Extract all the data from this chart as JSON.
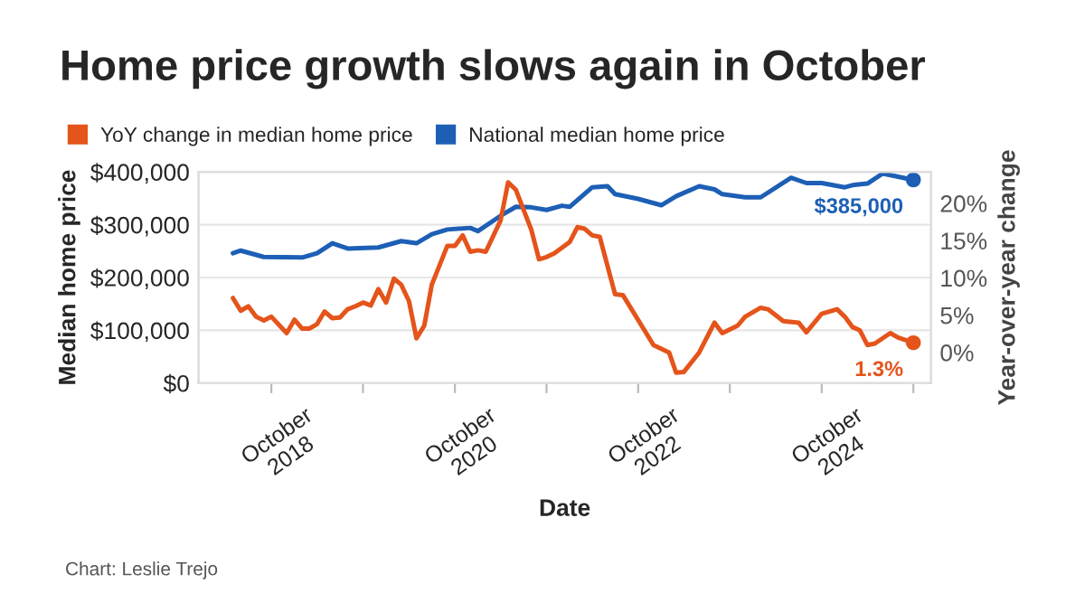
{
  "chart_data": {
    "type": "line",
    "title": "Home price growth slows again in October",
    "xlabel": "Date",
    "ylabel": "Median home price",
    "y2label": "Year-over-year change",
    "series": [
      {
        "name": "YoY change in median home price",
        "color": "#e4541b",
        "axis": "y2",
        "x": [
          "2018-05",
          "2018-06",
          "2018-07",
          "2018-08",
          "2018-09",
          "2018-10",
          "2018-12",
          "2019-01",
          "2019-02",
          "2019-03",
          "2019-04",
          "2019-05",
          "2019-06",
          "2019-07",
          "2019-08",
          "2019-09",
          "2019-10",
          "2019-11",
          "2019-12",
          "2020-01",
          "2020-02",
          "2020-03",
          "2020-04",
          "2020-05",
          "2020-06",
          "2020-07",
          "2020-09",
          "2020-10",
          "2020-11",
          "2020-12",
          "2021-01",
          "2021-02",
          "2021-04",
          "2021-05",
          "2021-06",
          "2021-08",
          "2021-09",
          "2021-10",
          "2021-11",
          "2022-01",
          "2022-02",
          "2022-03",
          "2022-04",
          "2022-05",
          "2022-07",
          "2022-08",
          "2022-12",
          "2023-02",
          "2023-03",
          "2023-04",
          "2023-06",
          "2023-08",
          "2023-09",
          "2023-11",
          "2023-12",
          "2024-02",
          "2024-03",
          "2024-05",
          "2024-07",
          "2024-08",
          "2024-10",
          "2024-12",
          "2025-01",
          "2025-02",
          "2025-03",
          "2025-04",
          "2025-05",
          "2025-07",
          "2025-08",
          "2025-10"
        ],
        "values": [
          7.3,
          5.6,
          6.2,
          4.8,
          4.3,
          4.8,
          2.6,
          4.4,
          3.2,
          3.2,
          3.8,
          5.5,
          4.6,
          4.7,
          5.8,
          6.2,
          6.7,
          6.3,
          8.5,
          6.7,
          9.9,
          9.1,
          6.9,
          1.9,
          3.6,
          9.1,
          14.3,
          14.3,
          15.7,
          13.5,
          13.7,
          13.5,
          17.7,
          22.8,
          21.8,
          16.5,
          12.5,
          12.8,
          13.3,
          14.8,
          16.8,
          16.6,
          15.7,
          15.5,
          7.8,
          7.7,
          1.0,
          0.0,
          -2.7,
          -2.6,
          0.0,
          4.0,
          2.6,
          3.6,
          4.8,
          6.0,
          5.8,
          4.2,
          4.0,
          2.7,
          5.2,
          5.8,
          4.8,
          3.4,
          3.0,
          1.0,
          1.2,
          2.6,
          2.0,
          1.3
        ]
      },
      {
        "name": "National median home price",
        "color": "#1d5fb5",
        "axis": "y",
        "x": [
          "2018-05",
          "2018-06",
          "2018-09",
          "2019-02",
          "2019-04",
          "2019-06",
          "2019-08",
          "2019-12",
          "2020-03",
          "2020-05",
          "2020-07",
          "2020-09",
          "2020-12",
          "2021-01",
          "2021-04",
          "2021-06",
          "2021-08",
          "2021-10",
          "2021-12",
          "2022-01",
          "2022-04",
          "2022-06",
          "2022-07",
          "2022-10",
          "2023-01",
          "2023-03",
          "2023-06",
          "2023-08",
          "2023-09",
          "2023-12",
          "2024-02",
          "2024-06",
          "2024-08",
          "2024-10",
          "2025-01",
          "2025-02",
          "2025-04",
          "2025-06",
          "2025-08",
          "2025-10"
        ],
        "values": [
          246000,
          251000,
          239000,
          238000,
          246000,
          265000,
          255000,
          257000,
          269000,
          265000,
          282000,
          291000,
          294000,
          288000,
          317000,
          334000,
          333000,
          328000,
          336000,
          334000,
          371000,
          373000,
          358000,
          349000,
          337000,
          354000,
          373000,
          367000,
          358000,
          352000,
          352000,
          389000,
          379000,
          379000,
          371000,
          375000,
          378000,
          397000,
          391000,
          385000
        ]
      }
    ],
    "xlim": [
      "2017-12-15",
      "2025-12-10"
    ],
    "xticks": [
      {
        "value": "2018-10-01",
        "label": "October\n2018"
      },
      {
        "value": "2019-10-01",
        "label": null
      },
      {
        "value": "2020-10-01",
        "label": "October\n2020"
      },
      {
        "value": "2021-10-01",
        "label": null
      },
      {
        "value": "2022-10-01",
        "label": "October\n2022"
      },
      {
        "value": "2023-10-01",
        "label": null
      },
      {
        "value": "2024-10-01",
        "label": "October\n2024"
      },
      {
        "value": "2025-10-01",
        "label": null
      }
    ],
    "ylim": [
      0,
      400000
    ],
    "yticks": [
      {
        "value": 0,
        "label": "$0"
      },
      {
        "value": 100000,
        "label": "$100,000"
      },
      {
        "value": 200000,
        "label": "$200,000"
      },
      {
        "value": 300000,
        "label": "$300,000"
      },
      {
        "value": 400000,
        "label": "$400,000"
      }
    ],
    "y2lim": [
      -4.1,
      24.2
    ],
    "y2ticks": [
      {
        "value": 0,
        "label": "0%"
      },
      {
        "value": 5,
        "label": "5%"
      },
      {
        "value": 10,
        "label": "10%"
      },
      {
        "value": 15,
        "label": "15%"
      },
      {
        "value": 20,
        "label": "20%"
      }
    ],
    "annotations": [
      {
        "text": "$385,000",
        "x": "2025-10",
        "y": 385000
      },
      "1.3%",
      "Chart: Leslie Trejo"
    ],
    "grid": "y",
    "legend": "top left",
    "marker": "none",
    "line_style": "solid"
  }
}
